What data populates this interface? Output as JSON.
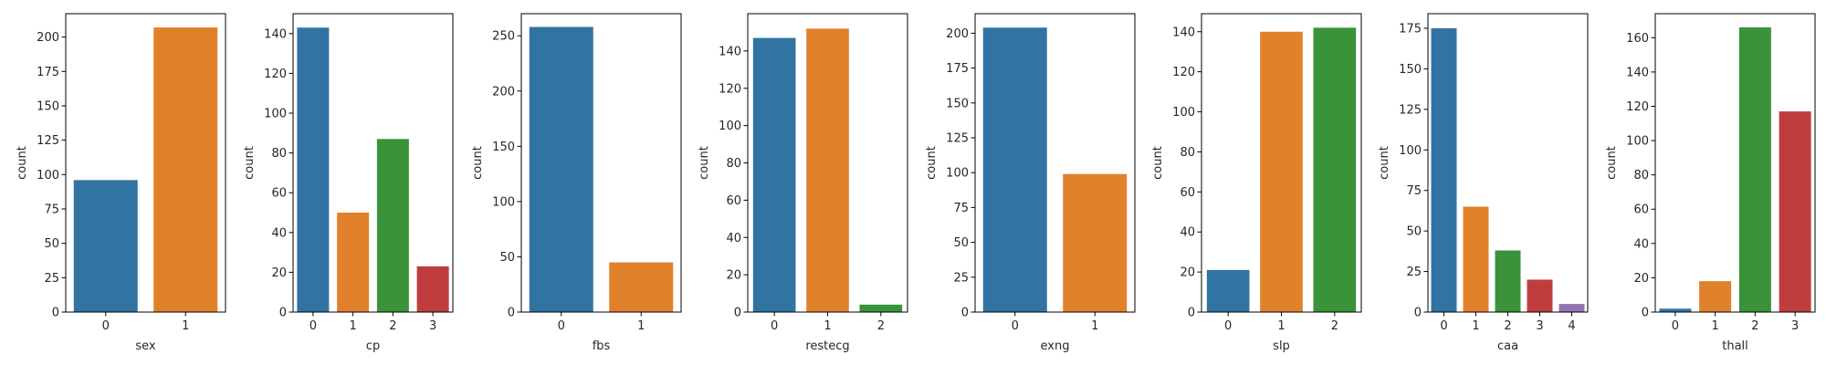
{
  "palette": [
    "#3274a1",
    "#e1812c",
    "#3a923a",
    "#c03d3e",
    "#9372b2"
  ],
  "chart_data": [
    {
      "type": "bar",
      "xlabel": "sex",
      "ylabel": "count",
      "categories": [
        "0",
        "1"
      ],
      "values": [
        96,
        207
      ],
      "ylim": [
        0,
        217
      ],
      "yticks": [
        0,
        25,
        50,
        75,
        100,
        125,
        150,
        175,
        200
      ],
      "grid": false
    },
    {
      "type": "bar",
      "xlabel": "cp",
      "ylabel": "count",
      "categories": [
        "0",
        "1",
        "2",
        "3"
      ],
      "values": [
        143,
        50,
        87,
        23
      ],
      "ylim": [
        0,
        150
      ],
      "yticks": [
        0,
        20,
        40,
        60,
        80,
        100,
        120,
        140
      ],
      "grid": false
    },
    {
      "type": "bar",
      "xlabel": "fbs",
      "ylabel": "count",
      "categories": [
        "0",
        "1"
      ],
      "values": [
        258,
        45
      ],
      "ylim": [
        0,
        270
      ],
      "yticks": [
        0,
        50,
        100,
        150,
        200,
        250
      ],
      "grid": false
    },
    {
      "type": "bar",
      "xlabel": "restecg",
      "ylabel": "count",
      "categories": [
        "0",
        "1",
        "2"
      ],
      "values": [
        147,
        152,
        4
      ],
      "ylim": [
        0,
        160
      ],
      "yticks": [
        0,
        20,
        40,
        60,
        80,
        100,
        120,
        140
      ],
      "grid": false
    },
    {
      "type": "bar",
      "xlabel": "exng",
      "ylabel": "count",
      "categories": [
        "0",
        "1"
      ],
      "values": [
        204,
        99
      ],
      "ylim": [
        0,
        214
      ],
      "yticks": [
        0,
        25,
        50,
        75,
        100,
        125,
        150,
        175,
        200
      ],
      "grid": false
    },
    {
      "type": "bar",
      "xlabel": "slp",
      "ylabel": "count",
      "categories": [
        "0",
        "1",
        "2"
      ],
      "values": [
        21,
        140,
        142
      ],
      "ylim": [
        0,
        149
      ],
      "yticks": [
        0,
        20,
        40,
        60,
        80,
        100,
        120,
        140
      ],
      "grid": false
    },
    {
      "type": "bar",
      "xlabel": "caa",
      "ylabel": "count",
      "categories": [
        "0",
        "1",
        "2",
        "3",
        "4"
      ],
      "values": [
        175,
        65,
        38,
        20,
        5
      ],
      "ylim": [
        0,
        184
      ],
      "yticks": [
        0,
        25,
        50,
        75,
        100,
        125,
        150,
        175
      ],
      "grid": false
    },
    {
      "type": "bar",
      "xlabel": "thall",
      "ylabel": "count",
      "categories": [
        "0",
        "1",
        "2",
        "3"
      ],
      "values": [
        2,
        18,
        166,
        117
      ],
      "ylim": [
        0,
        174
      ],
      "yticks": [
        0,
        20,
        40,
        60,
        80,
        100,
        120,
        140,
        160
      ],
      "grid": false
    }
  ]
}
